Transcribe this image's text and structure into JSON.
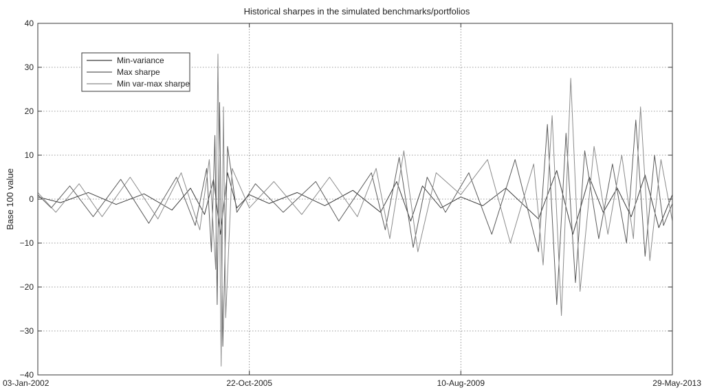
{
  "chart_data": {
    "type": "line",
    "title": "Historical sharpes in the simulated benchmarks/portfolios",
    "xlabel": "",
    "ylabel": "Base 100 value",
    "x_type": "date",
    "xlim": [
      "2002-01-03",
      "2013-05-29"
    ],
    "ylim": [
      -40,
      40
    ],
    "y_ticks": [
      -40,
      -30,
      -20,
      -10,
      0,
      10,
      20,
      30,
      40
    ],
    "y_tick_labels": [
      "−40",
      "−30",
      "−20",
      "−10",
      "0",
      "10",
      "20",
      "30",
      "40"
    ],
    "x_ticks": [
      "2002-01-03",
      "2005-10-22",
      "2009-08-10",
      "2013-05-29"
    ],
    "x_tick_labels": [
      "03-Jan-2002",
      "22-Oct-2005",
      "10-Aug-2009",
      "29-May-2013"
    ],
    "grid": true,
    "legend_position": "top-left",
    "colors": {
      "Min-variance": "#3a3a3a",
      "Max sharpe": "#5a5a5a",
      "Min var-max sharpe": "#8a8a8a"
    },
    "series": [
      {
        "name": "Min-variance",
        "x": [
          "2002-01-03",
          "2002-06-01",
          "2002-12-01",
          "2003-06-01",
          "2003-12-01",
          "2004-06-01",
          "2004-10-01",
          "2005-01-01",
          "2005-03-01",
          "2005-04-15",
          "2005-06-01",
          "2005-08-01",
          "2005-10-22",
          "2006-03-01",
          "2006-09-01",
          "2007-03-01",
          "2007-09-01",
          "2008-03-01",
          "2008-06-15",
          "2008-09-15",
          "2008-12-01",
          "2009-04-01",
          "2009-08-10",
          "2010-01-01",
          "2010-06-01",
          "2011-01-01",
          "2011-05-01",
          "2011-08-15",
          "2011-12-01",
          "2012-03-01",
          "2012-06-01",
          "2012-09-01",
          "2012-12-01",
          "2013-03-01",
          "2013-05-29"
        ],
        "y": [
          0.5,
          -0.8,
          1.5,
          -1.2,
          1.2,
          -2.5,
          2.5,
          -3.5,
          4.5,
          -8.0,
          6.0,
          -2.0,
          1.0,
          -1.0,
          1.5,
          -1.5,
          2.0,
          -3.0,
          4.0,
          -5.0,
          3.0,
          -2.0,
          0.5,
          -1.5,
          2.5,
          -4.5,
          6.5,
          -8.0,
          5.0,
          -3.0,
          2.5,
          -4.0,
          5.5,
          -6.5,
          1.0
        ]
      },
      {
        "name": "Max sharpe",
        "x": [
          "2002-01-03",
          "2002-04-01",
          "2002-08-01",
          "2003-01-01",
          "2003-07-01",
          "2004-01-01",
          "2004-07-01",
          "2004-11-01",
          "2005-01-15",
          "2005-02-15",
          "2005-03-10",
          "2005-03-25",
          "2005-04-10",
          "2005-05-01",
          "2005-06-01",
          "2005-08-01",
          "2005-12-01",
          "2006-06-01",
          "2007-01-01",
          "2007-06-01",
          "2008-01-01",
          "2008-04-01",
          "2008-07-01",
          "2008-10-01",
          "2009-01-01",
          "2009-05-01",
          "2009-10-01",
          "2010-03-01",
          "2010-08-01",
          "2011-01-01",
          "2011-03-01",
          "2011-05-01",
          "2011-07-01",
          "2011-09-01",
          "2011-11-01",
          "2012-02-01",
          "2012-05-01",
          "2012-08-01",
          "2012-10-01",
          "2012-12-01",
          "2013-02-01",
          "2013-04-01",
          "2013-05-29"
        ],
        "y": [
          1.0,
          -2.0,
          3.0,
          -4.0,
          4.5,
          -5.5,
          5.0,
          -6.0,
          7.0,
          -12.0,
          14.5,
          -24.0,
          22.0,
          -33.5,
          12.0,
          -3.0,
          3.5,
          -3.0,
          4.0,
          -5.0,
          6.0,
          -7.0,
          9.5,
          -11.0,
          5.0,
          -3.0,
          6.0,
          -8.0,
          9.0,
          -12.0,
          17.0,
          -24.0,
          15.0,
          -19.0,
          11.0,
          -9.0,
          8.0,
          -10.0,
          18.0,
          -13.0,
          10.0,
          -6.0,
          -1.0
        ]
      },
      {
        "name": "Min var-max sharpe",
        "x": [
          "2002-01-03",
          "2002-05-01",
          "2002-10-01",
          "2003-03-01",
          "2003-09-01",
          "2004-03-01",
          "2004-08-01",
          "2004-12-01",
          "2005-02-01",
          "2005-03-15",
          "2005-03-30",
          "2005-04-20",
          "2005-05-05",
          "2005-05-20",
          "2005-07-01",
          "2005-10-22",
          "2006-04-01",
          "2006-10-01",
          "2007-04-01",
          "2007-10-01",
          "2008-02-01",
          "2008-05-01",
          "2008-08-01",
          "2008-11-01",
          "2009-03-01",
          "2009-08-10",
          "2010-02-01",
          "2010-07-01",
          "2010-12-01",
          "2011-02-01",
          "2011-04-01",
          "2011-06-01",
          "2011-08-01",
          "2011-10-01",
          "2012-01-01",
          "2012-04-01",
          "2012-07-01",
          "2012-09-15",
          "2012-11-01",
          "2013-01-01",
          "2013-03-15",
          "2013-05-29"
        ],
        "y": [
          1.5,
          -3.0,
          3.5,
          -4.0,
          5.0,
          -4.5,
          6.0,
          -7.0,
          9.0,
          -16.0,
          33.0,
          -38.0,
          21.0,
          -27.0,
          7.0,
          -2.0,
          4.0,
          -3.5,
          5.0,
          -4.0,
          7.0,
          -9.0,
          11.0,
          -12.0,
          6.0,
          1.0,
          9.0,
          -10.0,
          8.0,
          -15.0,
          19.0,
          -26.5,
          27.5,
          -21.0,
          12.0,
          -8.0,
          10.0,
          -9.0,
          21.0,
          -14.0,
          9.0,
          -5.0
        ]
      }
    ]
  }
}
